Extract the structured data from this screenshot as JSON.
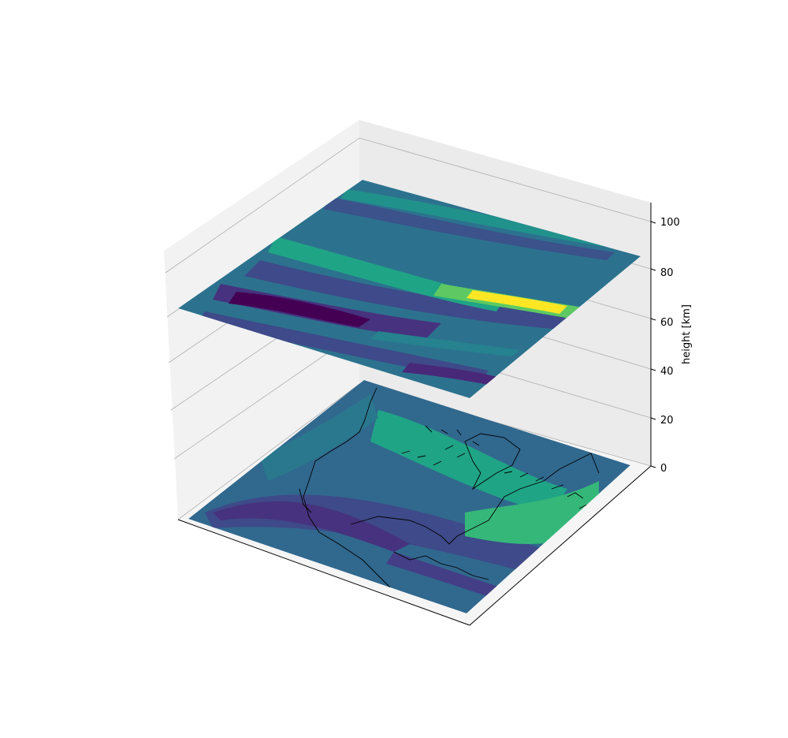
{
  "chart_data": {
    "type": "surface",
    "title": "",
    "xlabel": "",
    "ylabel": "",
    "zlabel": "height [km]",
    "zlim": [
      0,
      105
    ],
    "z_ticks": [
      0,
      20,
      40,
      60,
      80,
      100
    ],
    "z_tick_labels": [
      "0",
      "20",
      "40",
      "60",
      "80",
      "100"
    ],
    "grid": true,
    "colormap": "viridis",
    "layers": [
      {
        "name": "",
        "z": 0,
        "basemap": "coastlines-north-america"
      },
      {
        "name": "",
        "z": 80,
        "basemap": "none"
      }
    ]
  },
  "colors": {
    "pane_back": "#ebebeb",
    "pane_left": "#f2f2f2",
    "pane_floor": "#f5f5f5",
    "grid": "#b0b0b0",
    "coastline": "#000000"
  }
}
